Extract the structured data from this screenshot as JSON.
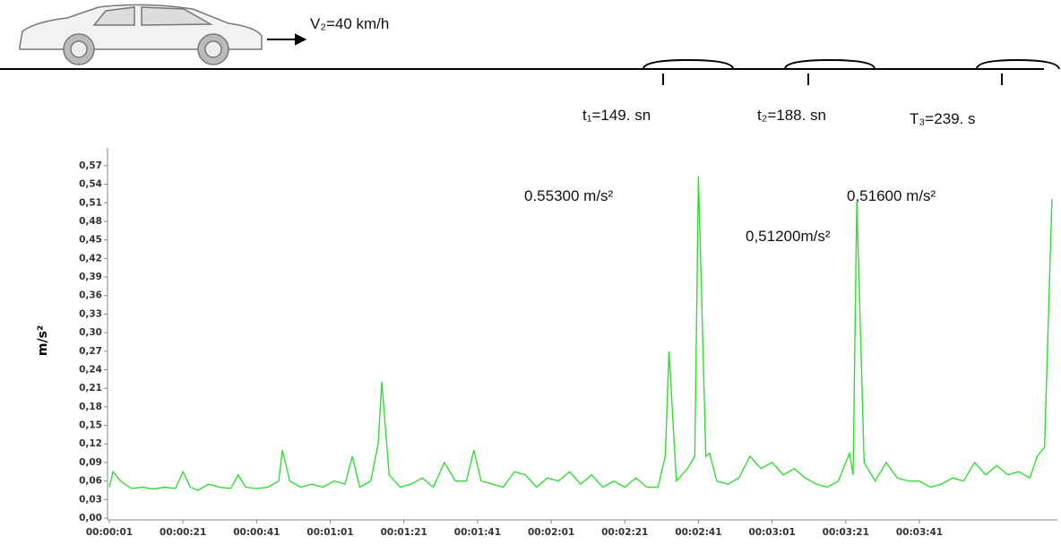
{
  "chart_data": {
    "type": "line",
    "speed_label": "V₂=40 km/h",
    "time_labels": [
      "t₁=149. sn",
      "t₂=188. sn",
      "T₃=239. s"
    ],
    "annotations": [
      "0.55300 m/s²",
      "0,51600 m/s²",
      "0,51200m/s²"
    ],
    "y_label": "m/s²",
    "x": [
      1,
      2,
      4,
      7,
      10,
      13,
      16,
      19,
      21,
      23,
      25,
      28,
      31,
      34,
      36,
      38,
      41,
      44,
      47,
      48,
      50,
      53,
      56,
      59,
      62,
      65,
      67,
      69,
      72,
      74,
      75,
      77,
      80,
      83,
      86,
      89,
      92,
      95,
      98,
      100,
      102,
      105,
      108,
      111,
      114,
      117,
      120,
      123,
      126,
      129,
      132,
      135,
      138,
      141,
      144,
      147,
      150,
      152,
      153,
      155,
      158,
      160,
      161,
      163,
      164,
      166,
      169,
      172,
      175,
      178,
      181,
      184,
      187,
      190,
      193,
      196,
      199,
      202,
      203,
      204,
      206,
      209,
      212,
      215,
      218,
      221,
      224,
      227,
      230,
      233,
      236,
      239,
      242,
      245,
      248,
      251,
      253,
      255,
      257
    ],
    "series": [
      {
        "color": "#33dd33",
        "values": [
          0.05,
          0.075,
          0.06,
          0.048,
          0.05,
          0.047,
          0.05,
          0.048,
          0.075,
          0.05,
          0.045,
          0.055,
          0.05,
          0.048,
          0.07,
          0.05,
          0.048,
          0.05,
          0.06,
          0.11,
          0.06,
          0.05,
          0.055,
          0.05,
          0.06,
          0.055,
          0.1,
          0.05,
          0.06,
          0.12,
          0.22,
          0.07,
          0.05,
          0.055,
          0.065,
          0.05,
          0.09,
          0.06,
          0.06,
          0.11,
          0.06,
          0.055,
          0.05,
          0.075,
          0.07,
          0.05,
          0.065,
          0.06,
          0.075,
          0.055,
          0.07,
          0.05,
          0.06,
          0.05,
          0.065,
          0.05,
          0.05,
          0.1,
          0.27,
          0.06,
          0.08,
          0.1,
          0.553,
          0.1,
          0.105,
          0.06,
          0.055,
          0.065,
          0.1,
          0.08,
          0.09,
          0.07,
          0.08,
          0.065,
          0.055,
          0.05,
          0.06,
          0.105,
          0.07,
          0.512,
          0.09,
          0.06,
          0.09,
          0.065,
          0.06,
          0.06,
          0.05,
          0.055,
          0.065,
          0.06,
          0.09,
          0.07,
          0.085,
          0.07,
          0.075,
          0.065,
          0.1,
          0.115,
          0.516
        ]
      }
    ],
    "xlim": [
      1,
      258
    ],
    "xticks": [
      {
        "value": 1,
        "label": "00:00:01"
      },
      {
        "value": 21,
        "label": "00:00:21"
      },
      {
        "value": 41,
        "label": "00:00:41"
      },
      {
        "value": 61,
        "label": "00:01:01"
      },
      {
        "value": 81,
        "label": "00:01:21"
      },
      {
        "value": 101,
        "label": "00:01:41"
      },
      {
        "value": 121,
        "label": "00:02:01"
      },
      {
        "value": 141,
        "label": "00:02:21"
      },
      {
        "value": 161,
        "label": "00:02:41"
      },
      {
        "value": 181,
        "label": "00:03:01"
      },
      {
        "value": 201,
        "label": "00:03:21"
      },
      {
        "value": 221,
        "label": "00:03:41"
      }
    ],
    "ylim": [
      0,
      0.58
    ],
    "yticks": [
      {
        "value": 0,
        "label": "0,00"
      },
      {
        "value": 0.03,
        "label": "0,03"
      },
      {
        "value": 0.06,
        "label": "0,06"
      },
      {
        "value": 0.09,
        "label": "0,09"
      },
      {
        "value": 0.12,
        "label": "0,12"
      },
      {
        "value": 0.15,
        "label": "0,15"
      },
      {
        "value": 0.18,
        "label": "0,18"
      },
      {
        "value": 0.21,
        "label": "0,21"
      },
      {
        "value": 0.24,
        "label": "0,24"
      },
      {
        "value": 0.27,
        "label": "0,27"
      },
      {
        "value": 0.3,
        "label": "0,30"
      },
      {
        "value": 0.33,
        "label": "0,33"
      },
      {
        "value": 0.36,
        "label": "0,36"
      },
      {
        "value": 0.39,
        "label": "0,39"
      },
      {
        "value": 0.42,
        "label": "0,42"
      },
      {
        "value": 0.45,
        "label": "0,45"
      },
      {
        "value": 0.48,
        "label": "0,48"
      },
      {
        "value": 0.51,
        "label": "0,51"
      },
      {
        "value": 0.54,
        "label": "0,54"
      },
      {
        "value": 0.57,
        "label": "0,57"
      }
    ]
  }
}
